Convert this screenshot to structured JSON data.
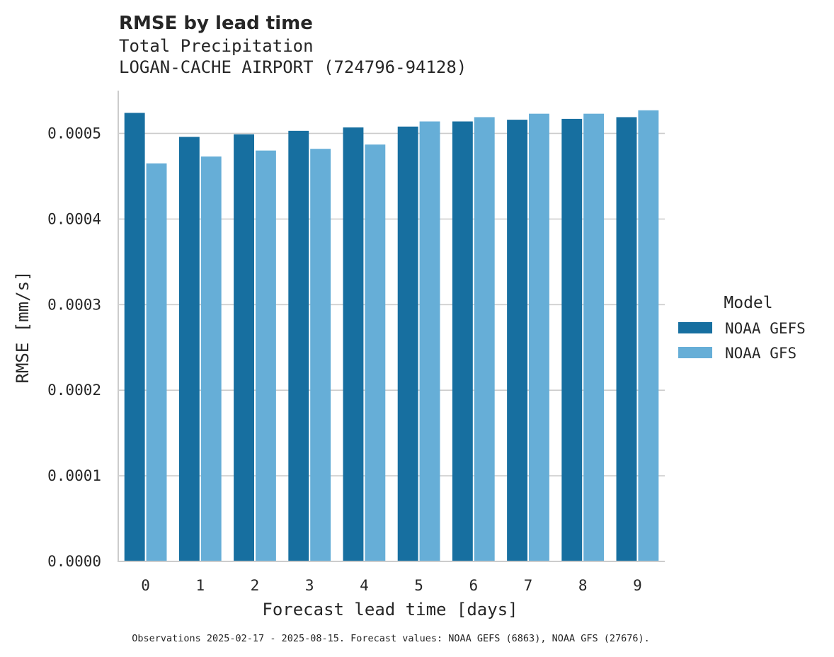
{
  "chart_data": {
    "type": "bar",
    "title": "RMSE by lead time",
    "subtitle_lines": [
      "Total Precipitation",
      "LOGAN-CACHE AIRPORT (724796-94128)"
    ],
    "xlabel": "Forecast lead time [days]",
    "ylabel": "RMSE [mm/s]",
    "categories": [
      "0",
      "1",
      "2",
      "3",
      "4",
      "5",
      "6",
      "7",
      "8",
      "9"
    ],
    "ylim": [
      0,
      0.00055
    ],
    "yticks": [
      0.0,
      0.0001,
      0.0002,
      0.0003,
      0.0004,
      0.0005
    ],
    "ytick_labels": [
      "0.0000",
      "0.0001",
      "0.0002",
      "0.0003",
      "0.0004",
      "0.0005"
    ],
    "grid": "horizontal",
    "legend": {
      "title": "Model",
      "placement": "right"
    },
    "series": [
      {
        "name": "NOAA GEFS",
        "color": "#176fa0",
        "values": [
          0.000524,
          0.000496,
          0.000499,
          0.000503,
          0.000507,
          0.000508,
          0.000514,
          0.000516,
          0.000517,
          0.000519
        ]
      },
      {
        "name": "NOAA GFS",
        "color": "#66aed7",
        "values": [
          0.000465,
          0.000473,
          0.00048,
          0.000482,
          0.000487,
          0.000514,
          0.000519,
          0.000523,
          0.000523,
          0.000527
        ]
      }
    ],
    "footnote": "Observations 2025-02-17 - 2025-08-15. Forecast values: NOAA GEFS (6863), NOAA GFS (27676)."
  }
}
